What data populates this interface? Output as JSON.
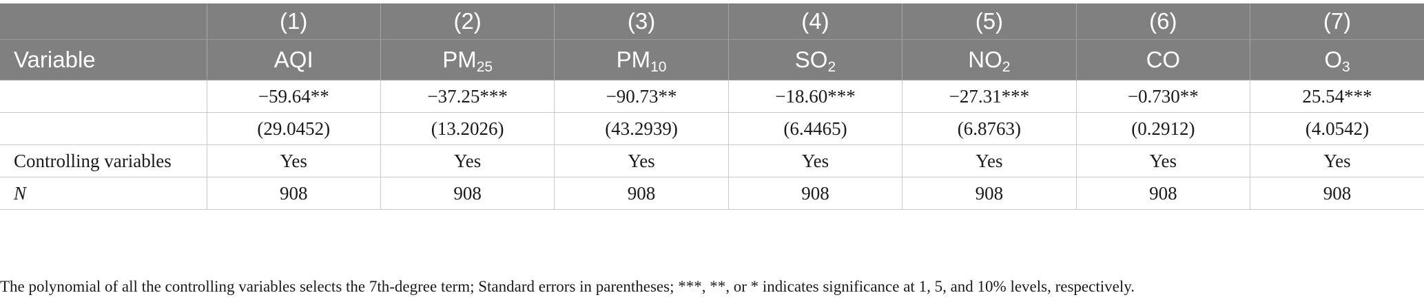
{
  "table": {
    "column_numbers": [
      "(1)",
      "(2)",
      "(3)",
      "(4)",
      "(5)",
      "(6)",
      "(7)"
    ],
    "variable_header": "Variable",
    "columns": [
      {
        "base": "AQI",
        "sub": ""
      },
      {
        "base": "PM",
        "sub": "25"
      },
      {
        "base": "PM",
        "sub": "10"
      },
      {
        "base": "SO",
        "sub": "2"
      },
      {
        "base": "NO",
        "sub": "2"
      },
      {
        "base": "CO",
        "sub": ""
      },
      {
        "base": "O",
        "sub": "3"
      }
    ],
    "rows": [
      {
        "label": "",
        "italic": false,
        "cells": [
          "−59.64**",
          "−37.25***",
          "−90.73**",
          "−18.60***",
          "−27.31***",
          "−0.730**",
          "25.54***"
        ]
      },
      {
        "label": "",
        "italic": false,
        "cells": [
          "(29.0452)",
          "(13.2026)",
          "(43.2939)",
          "(6.4465)",
          "(6.8763)",
          "(0.2912)",
          "(4.0542)"
        ]
      },
      {
        "label": "Controlling variables",
        "italic": false,
        "cells": [
          "Yes",
          "Yes",
          "Yes",
          "Yes",
          "Yes",
          "Yes",
          "Yes"
        ]
      },
      {
        "label": "N",
        "italic": true,
        "cells": [
          "908",
          "908",
          "908",
          "908",
          "908",
          "908",
          "908"
        ]
      }
    ]
  },
  "footnote": "The polynomial of all the controlling variables selects the 7th-degree term; Standard errors in parentheses; ***, **, or * indicates significance at 1, 5, and 10% levels, respectively."
}
